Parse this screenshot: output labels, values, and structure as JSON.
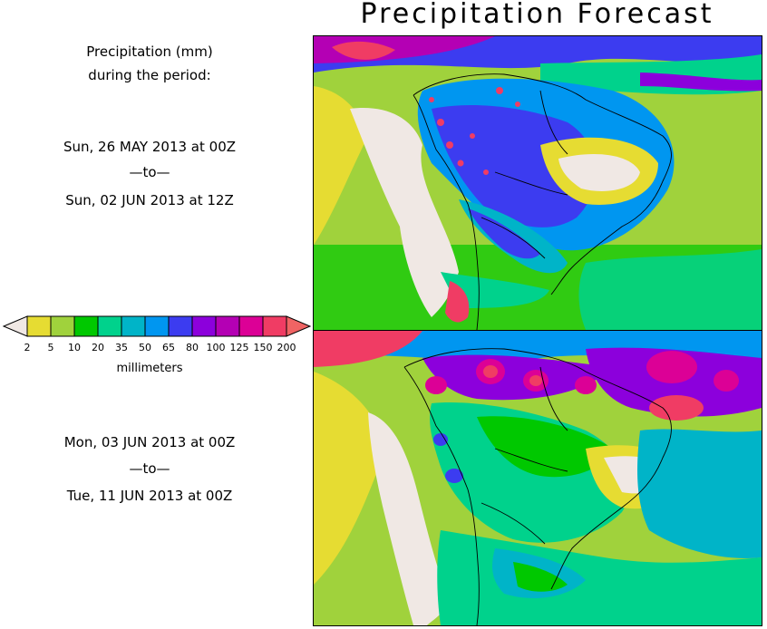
{
  "title": "Precipitation Forecast",
  "subtitle_line1": "Precipitation (mm)",
  "subtitle_line2": "during the period:",
  "period1": {
    "start": "Sun, 26 MAY 2013 at 00Z",
    "sep": "—to—",
    "end": "Sun, 02 JUN 2013 at 12Z"
  },
  "period2": {
    "start": "Mon, 03 JUN 2013 at 00Z",
    "sep": "—to—",
    "end": "Tue, 11 JUN 2013 at 00Z"
  },
  "legend": {
    "unit": "millimeters",
    "ticks": [
      "2",
      "5",
      "10",
      "20",
      "35",
      "50",
      "65",
      "80",
      "100",
      "125",
      "150",
      "200"
    ],
    "colors": [
      "#f0e8e4",
      "#e6dc32",
      "#a0d23c",
      "#00c800",
      "#00d28c",
      "#00b4c8",
      "#0096f0",
      "#3c3cf0",
      "#8c00dc",
      "#b400b4",
      "#dc0096",
      "#f03c64",
      "#f06464"
    ]
  }
}
